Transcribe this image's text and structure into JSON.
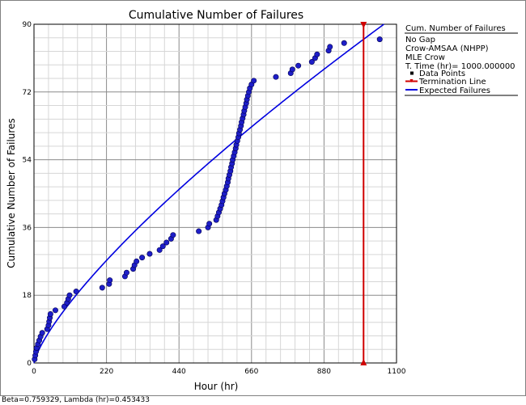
{
  "chart_data": {
    "type": "scatter",
    "title": "Cumulative Number of Failures",
    "xlabel": "Hour (hr)",
    "ylabel": "Cumulative Number of Failures",
    "xlim": [
      0,
      1100
    ],
    "ylim": [
      0,
      90
    ],
    "x_ticks": [
      "0",
      "220",
      "440",
      "660",
      "880",
      "1100"
    ],
    "y_ticks": [
      "0",
      "18",
      "36",
      "54",
      "72",
      "90"
    ],
    "grid": true,
    "legend_position": "right",
    "legend": {
      "header": "Cum. Number of Failures",
      "info_lines": [
        "No Gap",
        "Crow-AMSAA (NHPP)",
        "MLE Crow",
        "T. Time (hr)= 1000.000000"
      ],
      "entries": [
        {
          "label": "Data Points",
          "marker": "square",
          "color": "#000000"
        },
        {
          "label": "Termination Line",
          "marker": "line-triangle",
          "color": "#d00000"
        },
        {
          "label": "Expected Failures",
          "marker": "line",
          "color": "#0000e0"
        }
      ]
    },
    "series": [
      {
        "name": "Data Points",
        "color": "#1e1ec8",
        "points": [
          [
            2,
            1
          ],
          [
            4,
            2
          ],
          [
            6,
            3
          ],
          [
            8,
            4
          ],
          [
            12,
            5
          ],
          [
            16,
            6
          ],
          [
            20,
            7
          ],
          [
            25,
            8
          ],
          [
            40,
            9
          ],
          [
            44,
            10
          ],
          [
            46,
            11
          ],
          [
            48,
            12
          ],
          [
            50,
            13
          ],
          [
            65,
            14
          ],
          [
            92,
            15
          ],
          [
            100,
            16
          ],
          [
            104,
            17
          ],
          [
            108,
            18
          ],
          [
            128,
            19
          ],
          [
            207,
            20
          ],
          [
            228,
            21
          ],
          [
            230,
            22
          ],
          [
            276,
            23
          ],
          [
            281,
            24
          ],
          [
            301,
            25
          ],
          [
            305,
            26
          ],
          [
            311,
            27
          ],
          [
            328,
            28
          ],
          [
            351,
            29
          ],
          [
            381,
            30
          ],
          [
            391,
            31
          ],
          [
            402,
            32
          ],
          [
            416,
            33
          ],
          [
            422,
            34
          ],
          [
            500,
            35
          ],
          [
            528,
            36
          ],
          [
            532,
            37
          ],
          [
            553,
            38
          ],
          [
            557,
            39
          ],
          [
            561,
            40
          ],
          [
            565,
            41
          ],
          [
            569,
            42
          ],
          [
            572,
            43
          ],
          [
            575,
            44
          ],
          [
            578,
            45
          ],
          [
            582,
            46
          ],
          [
            585,
            47
          ],
          [
            588,
            48
          ],
          [
            590,
            49
          ],
          [
            593,
            50
          ],
          [
            596,
            51
          ],
          [
            598,
            52
          ],
          [
            601,
            53
          ],
          [
            603,
            54
          ],
          [
            606,
            55
          ],
          [
            609,
            56
          ],
          [
            612,
            57
          ],
          [
            614,
            58
          ],
          [
            617,
            59
          ],
          [
            620,
            60
          ],
          [
            622,
            61
          ],
          [
            625,
            62
          ],
          [
            628,
            63
          ],
          [
            630,
            64
          ],
          [
            633,
            65
          ],
          [
            636,
            66
          ],
          [
            638,
            67
          ],
          [
            641,
            68
          ],
          [
            644,
            69
          ],
          [
            646,
            70
          ],
          [
            649,
            71
          ],
          [
            652,
            72
          ],
          [
            655,
            73
          ],
          [
            660,
            74
          ],
          [
            667,
            75
          ],
          [
            734,
            76
          ],
          [
            779,
            77
          ],
          [
            784,
            78
          ],
          [
            802,
            79
          ],
          [
            843,
            80
          ],
          [
            853,
            81
          ],
          [
            859,
            82
          ],
          [
            894,
            83
          ],
          [
            898,
            84
          ],
          [
            941,
            85
          ],
          [
            1049,
            86
          ]
        ]
      },
      {
        "name": "Expected Failures",
        "type": "line",
        "color": "#0000e0",
        "beta": 0.759329,
        "lambda": 0.453433
      },
      {
        "name": "Termination Line",
        "type": "vline",
        "color": "#d00000",
        "x": 1000
      }
    ]
  },
  "status_text": "Beta=0.759329, Lambda (hr)=0.453433"
}
